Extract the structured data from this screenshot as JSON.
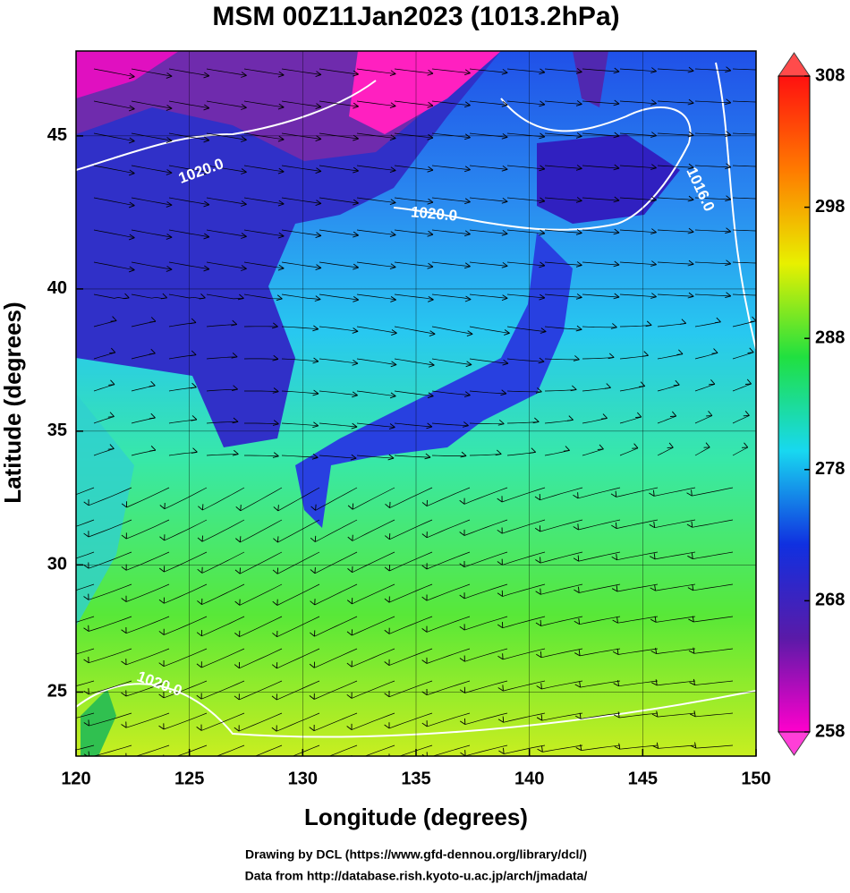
{
  "chart_data": {
    "type": "map",
    "title": "MSM 00Z11Jan2023 (1013.2hPa)",
    "xlabel": "Longitude (degrees)",
    "ylabel": "Latitude  (degrees)",
    "xlim": [
      120,
      150
    ],
    "xticks": [
      120,
      125,
      130,
      135,
      140,
      145,
      150
    ],
    "ylim": [
      22.4,
      47.6
    ],
    "yticks": [
      25,
      30,
      35,
      40,
      45
    ],
    "projection": "mercator",
    "grid": true,
    "colorbar": {
      "lim": [
        258,
        308
      ],
      "ticks": [
        258,
        268,
        278,
        288,
        298,
        308
      ],
      "colors": [
        "#ff00cc",
        "#5a1aa8",
        "#1030e0",
        "#18d8f0",
        "#20e040",
        "#e8f000",
        "#ff7a00",
        "#ff1010"
      ]
    },
    "contour_labels": [
      "1020.0",
      "1020.0",
      "1016.0",
      "1020.0"
    ],
    "footer": [
      "Drawing by DCL (https://www.gfd-dennou.org/library/dcl/)",
      "Data from http://database.rish.kyoto-u.ac.jp/arch/jmadata/"
    ]
  }
}
